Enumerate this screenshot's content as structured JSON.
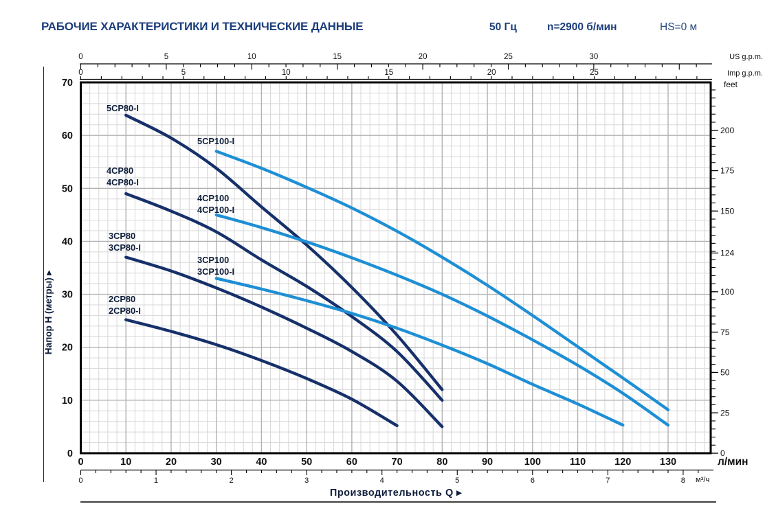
{
  "header": {
    "title": "РАБОЧИЕ ХАРАКТЕРИСТИКИ И ТЕХНИЧЕСКИЕ ДАННЫЕ",
    "frequency": "50 Гц",
    "rotation_speed": "n=2900 б/мин",
    "suction_head": "HS=0 м"
  },
  "chart_data": {
    "type": "line",
    "x_title": "Производительность Q",
    "x_title_arrow": "▸",
    "x_axis_lpm": {
      "unit": "л/мин",
      "tick_labels": [
        0,
        10,
        20,
        30,
        40,
        50,
        60,
        70,
        80,
        90,
        100,
        110,
        120,
        130
      ],
      "minor_step": 2,
      "range": [
        0,
        139.4
      ]
    },
    "x_axis_m3h": {
      "unit": "м³/ч",
      "tick_labels": [
        0,
        1,
        2,
        3,
        4,
        5,
        6,
        7,
        8
      ],
      "minor_step": 0.2
    },
    "top_axis_us": {
      "unit": "US g.p.m.",
      "tick_labels": [
        0,
        5,
        10,
        15,
        20,
        25,
        30
      ],
      "minor_step": 1
    },
    "top_axis_imp": {
      "unit": "Imp g.p.m.",
      "tick_labels": [
        0,
        5,
        10,
        15,
        20,
        25
      ],
      "minor_step": 1
    },
    "y_axis_m": {
      "label": "Напор H (метры)",
      "label_arrow": "▸",
      "tick_labels": [
        0,
        10,
        20,
        30,
        40,
        50,
        60,
        70
      ],
      "minor_step": 2,
      "range": [
        0,
        70
      ]
    },
    "y_axis_feet": {
      "unit": "feet",
      "tick_labels": [
        0,
        25,
        50,
        75,
        100,
        124,
        150,
        175,
        200
      ],
      "minor_step": 5
    },
    "grid": "on",
    "colors": {
      "dark_curve": "#16306a",
      "light_curve": "#1e8fd5",
      "grid_minor": "#d7d7d7",
      "grid_major": "#b2b2b2",
      "curve_label_text": "#0d1d3a",
      "axis_text": "#111111",
      "header_navy": "#1c3e7c"
    },
    "series": [
      {
        "name": "5CP80-I",
        "color": "dark_curve",
        "points": [
          [
            10,
            63.8
          ],
          [
            20,
            59.5
          ],
          [
            30,
            53.8
          ],
          [
            40,
            46.5
          ],
          [
            50,
            39.3
          ],
          [
            60,
            31.3
          ],
          [
            70,
            22.3
          ],
          [
            80,
            12.0
          ]
        ],
        "labels": [
          {
            "text": "5CP80-I",
            "x": 155,
            "y": 162
          }
        ]
      },
      {
        "name": "4CP80 / 4CP80-I",
        "color": "dark_curve",
        "points": [
          [
            10,
            49.0
          ],
          [
            20,
            45.7
          ],
          [
            30,
            41.8
          ],
          [
            40,
            36.5
          ],
          [
            50,
            31.5
          ],
          [
            60,
            25.8
          ],
          [
            70,
            19.2
          ],
          [
            80,
            10.0
          ]
        ],
        "labels": [
          {
            "text": "4CP80",
            "x": 155,
            "y": 253
          },
          {
            "text": "4CP80-I",
            "x": 155,
            "y": 270
          }
        ]
      },
      {
        "name": "3CP80 / 3CP80-I",
        "color": "dark_curve",
        "points": [
          [
            10,
            37.0
          ],
          [
            20,
            34.4
          ],
          [
            30,
            31.2
          ],
          [
            40,
            27.6
          ],
          [
            50,
            23.6
          ],
          [
            60,
            19.2
          ],
          [
            70,
            13.6
          ],
          [
            80,
            5.0
          ]
        ],
        "labels": [
          {
            "text": "3CP80",
            "x": 158,
            "y": 348
          },
          {
            "text": "3CP80-I",
            "x": 158,
            "y": 365
          }
        ]
      },
      {
        "name": "2CP80 / 2CP80-I",
        "color": "dark_curve",
        "points": [
          [
            10,
            25.2
          ],
          [
            20,
            23.0
          ],
          [
            30,
            20.5
          ],
          [
            40,
            17.5
          ],
          [
            50,
            14.1
          ],
          [
            60,
            10.2
          ],
          [
            70,
            5.2
          ]
        ],
        "labels": [
          {
            "text": "2CP80",
            "x": 158,
            "y": 440
          },
          {
            "text": "2CP80-I",
            "x": 158,
            "y": 457
          }
        ]
      },
      {
        "name": "5CP100-I",
        "color": "light_curve",
        "points": [
          [
            30,
            57.0
          ],
          [
            40,
            53.8
          ],
          [
            50,
            50.2
          ],
          [
            60,
            46.3
          ],
          [
            70,
            41.9
          ],
          [
            80,
            37.0
          ],
          [
            90,
            31.7
          ],
          [
            100,
            26.0
          ],
          [
            110,
            20.1
          ],
          [
            120,
            14.2
          ],
          [
            130,
            8.2
          ]
        ],
        "labels": [
          {
            "text": "5CP100-I",
            "x": 287,
            "y": 210
          }
        ]
      },
      {
        "name": "4CP100 / 4CP100-I",
        "color": "light_curve",
        "points": [
          [
            30,
            45.0
          ],
          [
            40,
            42.6
          ],
          [
            50,
            39.9
          ],
          [
            60,
            36.9
          ],
          [
            70,
            33.6
          ],
          [
            80,
            30.0
          ],
          [
            90,
            25.9
          ],
          [
            100,
            21.4
          ],
          [
            110,
            16.6
          ],
          [
            120,
            11.3
          ],
          [
            130,
            5.3
          ]
        ],
        "labels": [
          {
            "text": "4CP100",
            "x": 287,
            "y": 293
          },
          {
            "text": "4CP100-I",
            "x": 287,
            "y": 310
          }
        ]
      },
      {
        "name": "3CP100 / 3CP100-I",
        "color": "light_curve",
        "points": [
          [
            30,
            33.0
          ],
          [
            40,
            31.0
          ],
          [
            50,
            28.8
          ],
          [
            60,
            26.4
          ],
          [
            70,
            23.6
          ],
          [
            80,
            20.4
          ],
          [
            90,
            16.9
          ],
          [
            100,
            13.0
          ],
          [
            110,
            9.3
          ],
          [
            120,
            5.3
          ]
        ],
        "labels": [
          {
            "text": "3CP100",
            "x": 287,
            "y": 383
          },
          {
            "text": "3CP100-I",
            "x": 287,
            "y": 400
          }
        ]
      }
    ]
  }
}
